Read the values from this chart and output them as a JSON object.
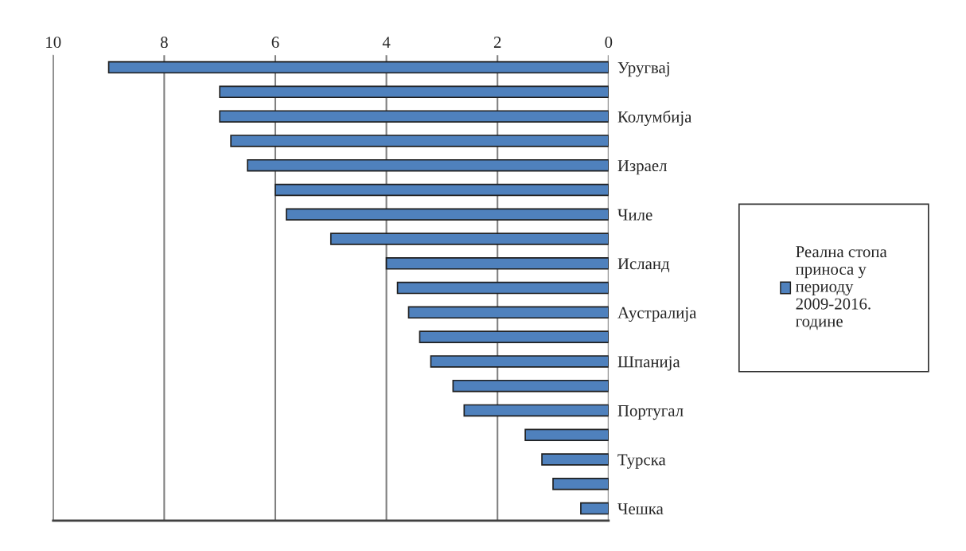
{
  "chart_data": {
    "type": "bar",
    "orientation": "horizontal",
    "categories": [
      "Уругвај",
      null,
      "Колумбија",
      null,
      "Израел",
      null,
      "Чиле",
      null,
      "Исланд",
      null,
      "Аустралија",
      null,
      "Шпанија",
      null,
      "Португал",
      null,
      "Турска",
      null,
      "Чешка"
    ],
    "series": [
      {
        "name": "Реална стопа приноса у периоду 2009-2016. године",
        "color": "#4f81bd",
        "values": [
          9.0,
          7.0,
          7.0,
          6.8,
          6.5,
          6.0,
          5.8,
          5.0,
          4.0,
          3.8,
          3.6,
          3.4,
          3.2,
          2.8,
          2.6,
          1.5,
          1.2,
          1.0,
          0.5
        ]
      }
    ],
    "xlim": [
      10,
      0
    ],
    "xticks": [
      10,
      8,
      6,
      4,
      2,
      0
    ],
    "grid": "x",
    "legend": "right"
  }
}
